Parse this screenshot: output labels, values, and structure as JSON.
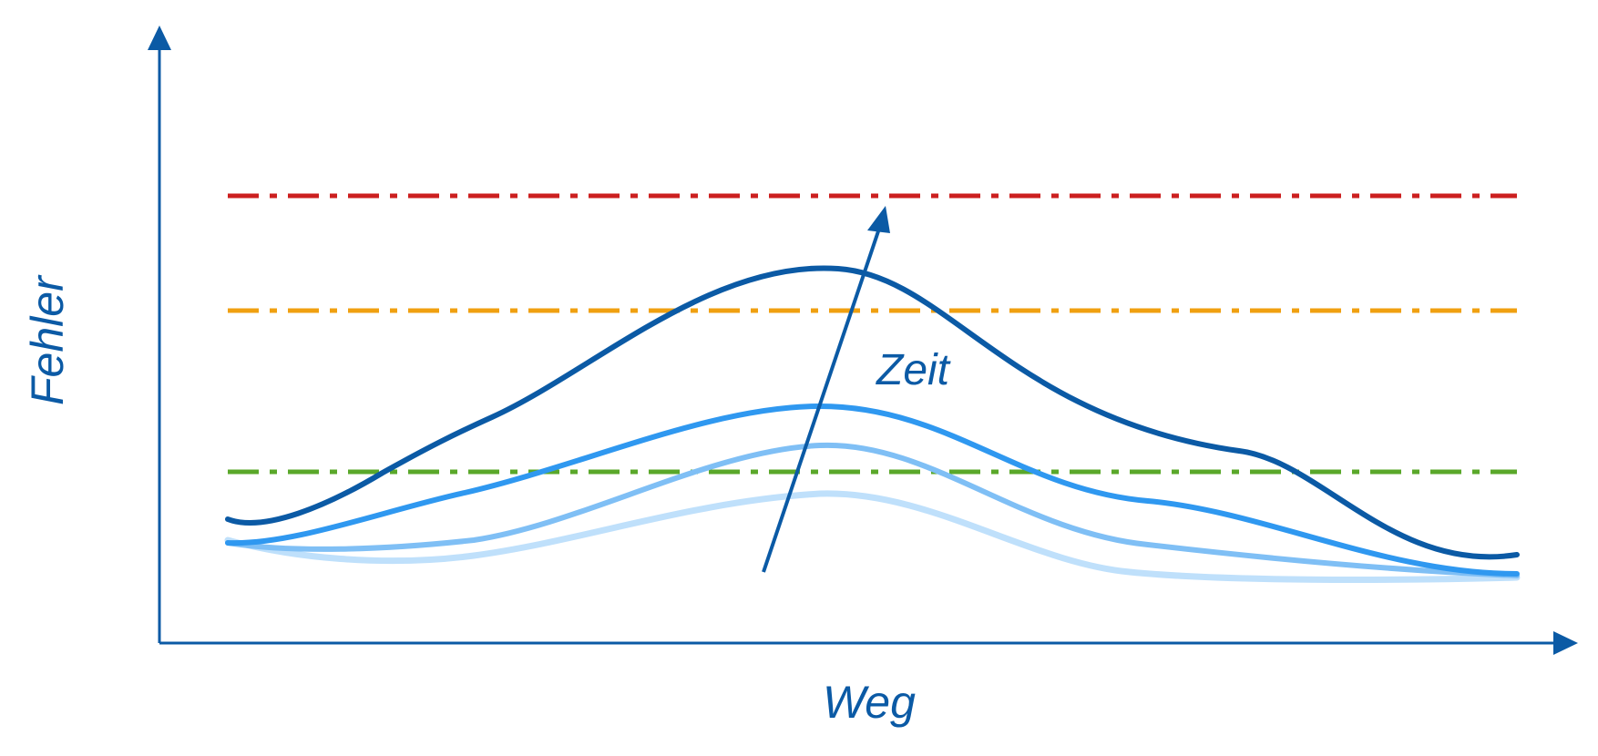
{
  "diagram": {
    "x_axis_label": "Weg",
    "y_axis_label": "Fehler",
    "time_arrow_label": "Zeit",
    "axis_color": "#0b5aa5",
    "threshold_lines": [
      {
        "name": "red-threshold",
        "color": "#cc1f1f",
        "style": "dash-dot"
      },
      {
        "name": "orange-threshold",
        "color": "#f0a010",
        "style": "dash-dot"
      },
      {
        "name": "green-threshold",
        "color": "#5aa82a",
        "style": "dash-dot"
      }
    ],
    "error_curves": [
      {
        "name": "error-curve-earliest",
        "color": "#bfe0fb"
      },
      {
        "name": "error-curve-2",
        "color": "#7fbff5"
      },
      {
        "name": "error-curve-3",
        "color": "#2f98f0"
      },
      {
        "name": "error-curve-latest",
        "color": "#0b5aa5"
      }
    ],
    "time_arrow_color": "#0b5aa5"
  }
}
